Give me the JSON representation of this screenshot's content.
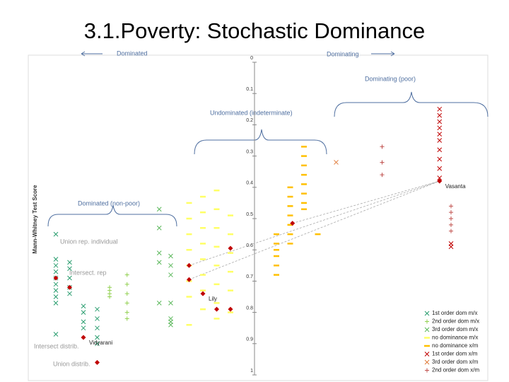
{
  "title": "3.1.Poverty: Stochastic Dominance",
  "chart_data": {
    "type": "scatter",
    "ylabel": "Mann-Whitney Test Score",
    "ylim": [
      0,
      1
    ],
    "yticks": [
      0,
      0.1,
      0.2,
      0.3,
      0.4,
      0.5,
      0.6,
      0.7,
      0.8,
      0.9,
      1
    ],
    "y_inverted": true,
    "xlim": [
      0,
      100
    ],
    "annotations": [
      "Dominated",
      "Dominating",
      "Dominating (poor)",
      "Undominated (indeterminate)",
      "Dominated (non-poor)",
      "Union rep. individual",
      "Intersect. rep",
      "Intersect distrib.",
      "Union distrib."
    ],
    "series": [
      {
        "name": "1st order dom m/x",
        "color": "#2a9d6f",
        "marker": "x",
        "x": [
          6,
          6,
          6,
          6,
          6,
          6,
          6,
          6,
          6,
          6,
          9,
          9,
          9,
          9,
          9,
          12,
          12,
          12,
          12,
          15,
          15,
          15,
          15,
          15
        ],
        "values": [
          0.55,
          0.63,
          0.65,
          0.67,
          0.69,
          0.71,
          0.73,
          0.75,
          0.77,
          0.87,
          0.64,
          0.66,
          0.69,
          0.72,
          0.74,
          0.78,
          0.8,
          0.83,
          0.85,
          0.79,
          0.82,
          0.85,
          0.88,
          0.9
        ]
      },
      {
        "name": "2nd order dom m/x",
        "color": "#92d050",
        "marker": "+",
        "x": [
          17.7,
          17.7,
          17.7,
          17.7,
          21.5,
          21.5,
          21.5,
          21.5,
          21.5,
          21.5
        ],
        "values": [
          0.72,
          0.73,
          0.74,
          0.75,
          0.68,
          0.71,
          0.74,
          0.77,
          0.8,
          0.82
        ]
      },
      {
        "name": "3rd order dom m/x",
        "color": "#5cb85c",
        "marker": "x",
        "x": [
          28.5,
          28.5,
          28.5,
          28.5,
          28.5,
          31,
          31,
          31,
          31,
          31,
          31,
          31
        ],
        "values": [
          0.47,
          0.53,
          0.61,
          0.64,
          0.77,
          0.62,
          0.65,
          0.68,
          0.77,
          0.82,
          0.83,
          0.84
        ]
      },
      {
        "name": "no dominance m/x",
        "color": "#ffff66",
        "marker": "-",
        "x": [
          35,
          35,
          35,
          35,
          35,
          35,
          35,
          35,
          38,
          38,
          38,
          38,
          38,
          38,
          38,
          38,
          41,
          41,
          41,
          41,
          41,
          41,
          41,
          41,
          44,
          44,
          44,
          44,
          44,
          44
        ],
        "values": [
          0.45,
          0.5,
          0.55,
          0.6,
          0.65,
          0.7,
          0.75,
          0.84,
          0.43,
          0.48,
          0.53,
          0.58,
          0.63,
          0.68,
          0.73,
          0.79,
          0.41,
          0.47,
          0.53,
          0.59,
          0.65,
          0.71,
          0.77,
          0.82,
          0.49,
          0.55,
          0.61,
          0.67,
          0.73,
          0.8
        ]
      },
      {
        "name": "no dominance x/m",
        "color": "#ffc000",
        "marker": "-",
        "x": [
          54,
          54,
          54,
          54,
          54,
          54,
          57,
          57,
          57,
          57,
          57,
          57,
          57,
          60,
          60,
          60,
          60,
          60,
          60,
          60,
          60,
          63
        ],
        "values": [
          0.55,
          0.58,
          0.6,
          0.62,
          0.65,
          0.68,
          0.4,
          0.43,
          0.46,
          0.49,
          0.52,
          0.55,
          0.58,
          0.27,
          0.3,
          0.33,
          0.36,
          0.39,
          0.42,
          0.45,
          0.47,
          0.55
        ]
      },
      {
        "name": "1st order dom x/m",
        "color": "#c00000",
        "marker": "x",
        "x": [
          89.5,
          89.5,
          89.5,
          89.5,
          89.5,
          89.5,
          89.5,
          89.5,
          89.5,
          89.5,
          92,
          92
        ],
        "values": [
          0.15,
          0.17,
          0.19,
          0.21,
          0.23,
          0.25,
          0.28,
          0.31,
          0.34,
          0.37,
          0.58,
          0.59
        ]
      },
      {
        "name": "3rd order dom x/m",
        "color": "#e07b39",
        "marker": "x",
        "x": [
          67
        ],
        "values": [
          0.32
        ]
      },
      {
        "name": "2nd order dom x/m",
        "color": "#c0504d",
        "marker": "+",
        "x": [
          77,
          77,
          77,
          92,
          92,
          92,
          92,
          92
        ],
        "values": [
          0.27,
          0.32,
          0.36,
          0.46,
          0.48,
          0.5,
          0.52,
          0.54
        ]
      }
    ],
    "highlights": {
      "color": "#c00000",
      "x": [
        6,
        9,
        12,
        15,
        35,
        35,
        38,
        41,
        44,
        44,
        57.5,
        89.5
      ],
      "values": [
        0.69,
        0.72,
        0.88,
        0.96,
        0.65,
        0.695,
        0.74,
        0.79,
        0.595,
        0.79,
        0.515,
        0.38
      ],
      "labels": [
        null,
        null,
        "Vidyarani",
        null,
        null,
        null,
        "Lily",
        null,
        null,
        null,
        null,
        "Vasanta"
      ]
    }
  }
}
